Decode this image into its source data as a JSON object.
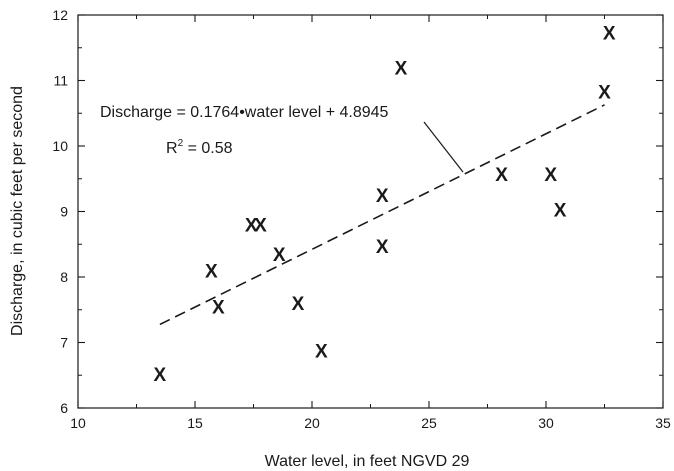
{
  "chart_data": {
    "type": "scatter",
    "title": "",
    "xlabel": "Water level, in feet NGVD 29",
    "ylabel": "Discharge, in cubic feet per second",
    "xlim": [
      10,
      35
    ],
    "ylim": [
      6,
      12
    ],
    "x_ticks": [
      10,
      15,
      20,
      25,
      30,
      35
    ],
    "y_ticks": [
      6,
      7,
      8,
      9,
      10,
      11,
      12
    ],
    "x_tick_labels": [
      "10",
      "15",
      "20",
      "25",
      "30",
      "35"
    ],
    "y_tick_labels": [
      "6",
      "7",
      "8",
      "9",
      "10",
      "11",
      "12"
    ],
    "grid": false,
    "marker_symbol": "X",
    "points": [
      {
        "x": 13.5,
        "y": 6.52
      },
      {
        "x": 15.7,
        "y": 8.1
      },
      {
        "x": 16.0,
        "y": 7.55
      },
      {
        "x": 17.4,
        "y": 8.8
      },
      {
        "x": 17.8,
        "y": 8.8
      },
      {
        "x": 18.6,
        "y": 8.35
      },
      {
        "x": 19.4,
        "y": 7.6
      },
      {
        "x": 20.4,
        "y": 6.88
      },
      {
        "x": 23.0,
        "y": 8.47
      },
      {
        "x": 23.0,
        "y": 9.25
      },
      {
        "x": 23.8,
        "y": 11.2
      },
      {
        "x": 28.1,
        "y": 9.57
      },
      {
        "x": 30.2,
        "y": 9.57
      },
      {
        "x": 30.6,
        "y": 9.03
      },
      {
        "x": 32.5,
        "y": 10.83
      },
      {
        "x": 32.7,
        "y": 11.73
      }
    ],
    "trendline": {
      "slope": 0.1764,
      "intercept": 4.8945,
      "x_range": [
        13.5,
        32.5
      ],
      "style": "dashed"
    },
    "annotations": {
      "equation": "Discharge = 0.1764•water level + 4.8945",
      "r2_prefix": "R",
      "r2_superscript": "2",
      "r2_value": " = 0.58"
    }
  }
}
